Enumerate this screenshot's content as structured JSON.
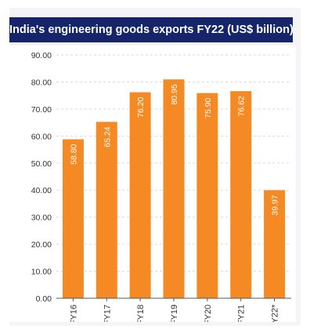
{
  "chart_data": {
    "type": "bar",
    "title": "India's engineering goods exports FY22 (US$ billion)",
    "categories": [
      "FY16",
      "FY17",
      "FY18",
      "FY19",
      "FY20",
      "FY21",
      "FY22*"
    ],
    "values": [
      58.8,
      65.24,
      76.2,
      80.95,
      75.9,
      76.62,
      39.97
    ],
    "data_labels": [
      "58.80",
      "65.24",
      "76.20",
      "80.95",
      "75.90",
      "76.62",
      "39.97"
    ],
    "y_ticks": [
      "0.00",
      "10.00",
      "20.00",
      "30.00",
      "40.00",
      "50.00",
      "60.00",
      "70.00",
      "80.00",
      "90.00"
    ],
    "ylim": [
      0,
      90
    ],
    "grid": true,
    "legend": "none",
    "colors": {
      "bar": "#f58a24",
      "title_bg": "#16246a",
      "title_text": "#ffffff",
      "grid": "#d9d9d9",
      "axis": "#555555",
      "label": "#ffffff"
    }
  }
}
